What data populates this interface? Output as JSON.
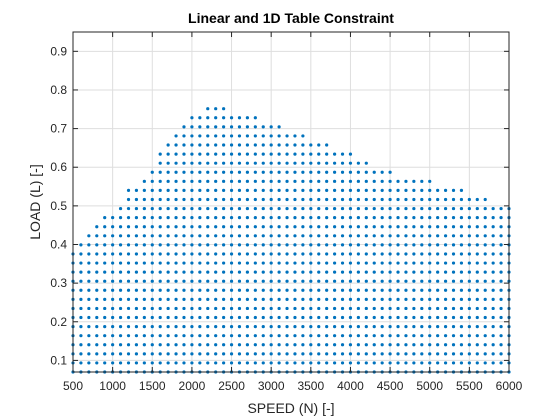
{
  "chart_data": {
    "type": "scatter",
    "title": "Linear and 1D Table Constraint",
    "xlabel": "SPEED (N) [-]",
    "ylabel": "LOAD (L) [-]",
    "xlim": [
      500,
      6000
    ],
    "ylim": [
      0.07,
      0.95
    ],
    "xticks": [
      500,
      1000,
      1500,
      2000,
      2500,
      3000,
      3500,
      4000,
      4500,
      5000,
      5500,
      6000
    ],
    "yticks": [
      0.1,
      0.2,
      0.3,
      0.4,
      0.5,
      0.6,
      0.7,
      0.8,
      0.9
    ],
    "xtick_labels": [
      "500",
      "1000",
      "1500",
      "2000",
      "2500",
      "3000",
      "3500",
      "4000",
      "4500",
      "5000",
      "5500",
      "6000"
    ],
    "ytick_labels": [
      "0.1",
      "0.2",
      "0.3",
      "0.4",
      "0.5",
      "0.6",
      "0.7",
      "0.8",
      "0.9"
    ],
    "grid": true,
    "marker_color": "#0072BD",
    "grid_spec": {
      "x_start": 500,
      "x_end": 6000,
      "x_step": 100,
      "y_start": 0.07,
      "y_step": 0.0235
    },
    "boundary": {
      "description_free": true,
      "x": [
        500,
        700,
        1000,
        1200,
        1500,
        1700,
        2000,
        2200,
        2600,
        3000,
        3500,
        4000,
        4500,
        5000,
        5500,
        6000
      ],
      "y": [
        0.385,
        0.43,
        0.49,
        0.54,
        0.61,
        0.66,
        0.73,
        0.77,
        0.745,
        0.72,
        0.675,
        0.635,
        0.59,
        0.565,
        0.535,
        0.495
      ]
    }
  }
}
